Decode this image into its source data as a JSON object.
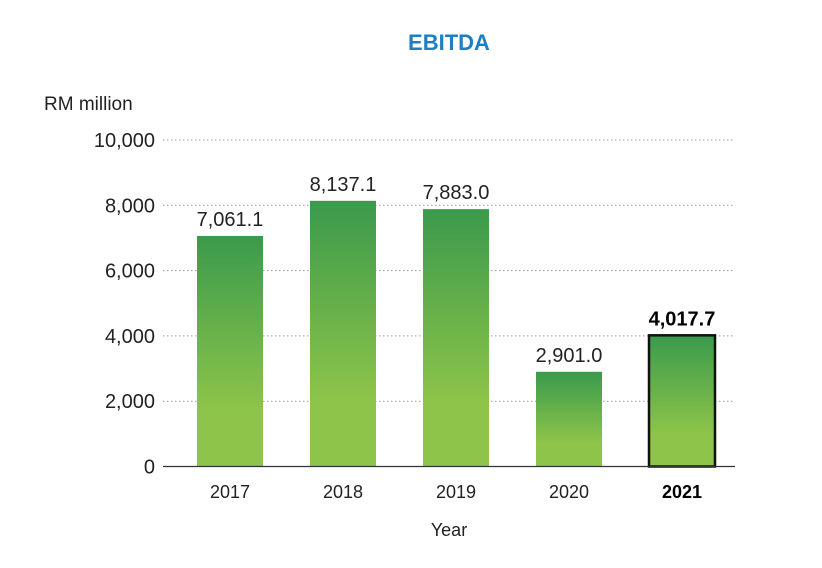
{
  "chart_data": {
    "type": "bar",
    "title": "EBITDA",
    "unit_label": "RM million",
    "xlabel": "Year",
    "ylabel": "RM million",
    "categories": [
      "2017",
      "2018",
      "2019",
      "2020",
      "2021"
    ],
    "values": [
      7061.1,
      8137.1,
      7883.0,
      2901.0,
      4017.7
    ],
    "value_labels": [
      "7,061.1",
      "8,137.1",
      "7,883.0",
      "2,901.0",
      "4,017.7"
    ],
    "highlight_index": 4,
    "ylim": [
      0,
      10000
    ],
    "yticks": [
      0,
      2000,
      4000,
      6000,
      8000,
      10000
    ],
    "ytick_labels": [
      "0",
      "2,000",
      "4,000",
      "6,000",
      "8,000",
      "10,000"
    ],
    "grid": true,
    "colors": {
      "title": "#1f7fc2",
      "bar_top": "#3a9a4c",
      "bar_bottom": "#8dc449",
      "grid": "#999999",
      "axis": "#333333",
      "highlight_border": "#111111"
    }
  }
}
